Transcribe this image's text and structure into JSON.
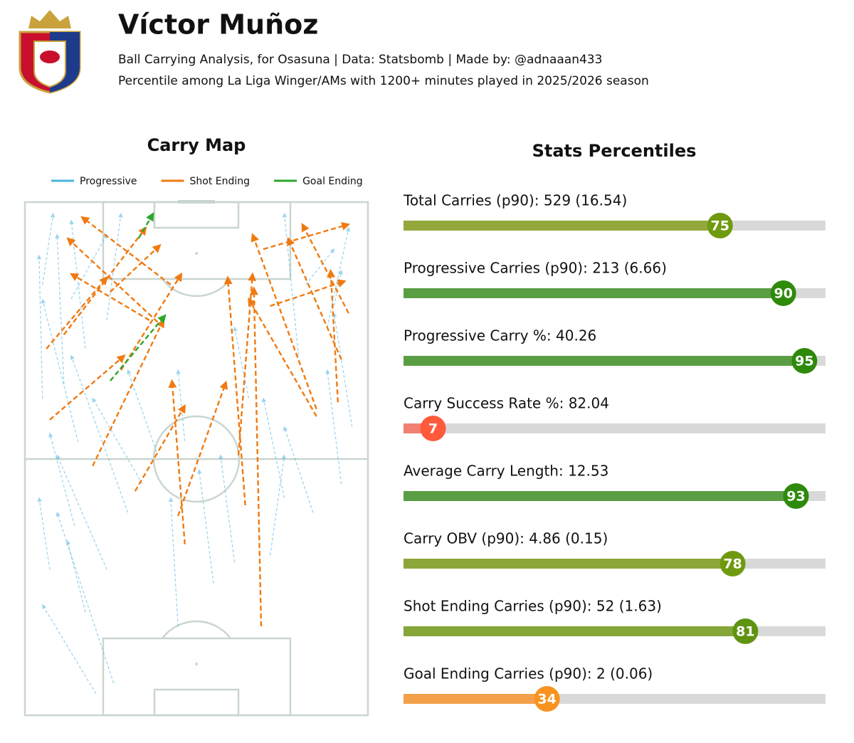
{
  "header": {
    "title": "Víctor Muñoz",
    "subtitle": "Ball Carrying Analysis, for Osasuna | Data: Statsbomb | Made by: @adnaaan433",
    "note": "Percentile among La Liga Winger/AMs with 1200+ minutes played in 2025/2026 season"
  },
  "chart_data": [
    {
      "type": "carry-map",
      "title": "Carry Map",
      "xlim": [
        0,
        80
      ],
      "ylim": [
        0,
        120
      ],
      "series": [
        {
          "name": "Progressive",
          "color": "#4ab3e0",
          "x": [
            16.6,
            14.1,
            5.8,
            11.6,
            19.1,
            24.0,
            27.4,
            44.0,
            48.9,
            60.5,
            67.2,
            73.8,
            76.3,
            57.2,
            37.3,
            4.1,
            9.1,
            14.1,
            19.1,
            10.8,
            4.1,
            63.8,
            70.5,
            65.5,
            72.1,
            12.4,
            35.7,
            20.7,
            30.7,
            52.2
          ],
          "y": [
            5.0,
            24.1,
            34.1,
            44.3,
            34.1,
            47.4,
            54.1,
            30.8,
            35.8,
            50.8,
            47.4,
            54.1,
            67.4,
            37.4,
            64.1,
            74.1,
            77.4,
            85.7,
            92.4,
            97.4,
            100.7,
            84.1,
            90.7,
            100.7,
            95.7,
            63.9,
            20.8,
            7.5,
            61.6,
            74.1
          ],
          "end_x": [
            4.1,
            9.9,
            3.3,
            5.8,
            7.5,
            10.8,
            15.8,
            40.6,
            45.6,
            55.6,
            60.5,
            70.5,
            72.1,
            60.5,
            35.7,
            3.3,
            7.5,
            10.8,
            22.4,
            19.1,
            6.6,
            60.5,
            75.5,
            72.1,
            73.8,
            4.1,
            34.0,
            7.5,
            24.0,
            48.9
          ],
          "end_y": [
            25.8,
            40.8,
            50.8,
            65.9,
            60.8,
            84.1,
            74.1,
            57.4,
            60.8,
            74.1,
            67.4,
            80.7,
            94.0,
            60.8,
            80.7,
            107.5,
            112.4,
            115.7,
            117.3,
            112.4,
            117.3,
            117.3,
            114.0,
            109.0,
            104.0,
            97.2,
            50.8,
            47.4,
            80.7,
            90.7
          ]
        },
        {
          "name": "Shot Ending",
          "color": "#f07a10",
          "x": [
            55.1,
            37.3,
            35.7,
            25.7,
            15.8,
            51.4,
            49.8,
            68.0,
            73.0,
            5.8,
            5.0,
            9.1,
            29.0,
            75.5,
            68.0,
            57.2,
            55.6,
            22.4,
            34.0,
            73.8,
            19.9,
            32.3
          ],
          "y": [
            20.8,
            40.0,
            46.6,
            52.4,
            58.3,
            49.1,
            60.8,
            69.9,
            73.2,
            69.1,
            85.7,
            89.0,
            92.4,
            94.0,
            71.6,
            95.7,
            109.0,
            80.7,
            100.7,
            83.2,
            99.0,
            90.7
          ],
          "end_x": [
            53.4,
            34.3,
            46.9,
            37.3,
            32.3,
            47.3,
            53.1,
            52.2,
            71.3,
            23.2,
            19.1,
            28.2,
            10.8,
            64.7,
            53.1,
            74.6,
            75.5,
            36.5,
            13.3,
            61.4,
            31.5,
            10.0
          ],
          "end_y": [
            99.9,
            78.2,
            77.9,
            72.4,
            92.4,
            102.4,
            103.2,
            97.4,
            104.0,
            84.1,
            102.4,
            114.0,
            103.2,
            114.8,
            112.4,
            101.5,
            114.8,
            103.2,
            116.5,
            111.5,
            109.9,
            111.5
          ]
        },
        {
          "name": "Goal Ending",
          "color": "#2ca52c",
          "x": [
            19.9,
            26.5
          ],
          "y": [
            78.2,
            111.5
          ],
          "end_x": [
            32.7,
            29.9
          ],
          "end_y": [
            93.5,
            117.3
          ]
        }
      ]
    },
    {
      "type": "percentile-bar",
      "title": "Stats Percentiles",
      "xlim": [
        0,
        100
      ],
      "track_color": "#d9d9d9",
      "categories": [
        "Total Carries (p90): 529 (16.54)",
        "Progressive Carries (p90): 213 (6.66)",
        "Progressive Carry %: 40.26",
        "Carry Success Rate %: 82.04",
        "Average Carry Length: 12.53",
        "Carry OBV (p90): 4.86 (0.15)",
        "Shot Ending Carries (p90): 52 (1.63)",
        "Goal Ending Carries (p90): 2 (0.06)"
      ],
      "values": [
        75,
        90,
        95,
        7,
        93,
        78,
        81,
        34
      ],
      "colors": [
        "#93a83c",
        "#5a9e44",
        "#5a9e44",
        "#f08070",
        "#5a9e44",
        "#8da63a",
        "#86a63a",
        "#f4a04a"
      ],
      "marker_colors": [
        "#6f9a10",
        "#2e8a0a",
        "#2e8a0a",
        "#ff5a3c",
        "#2e8a0a",
        "#6f9a10",
        "#5f9312",
        "#f7931e"
      ]
    }
  ]
}
